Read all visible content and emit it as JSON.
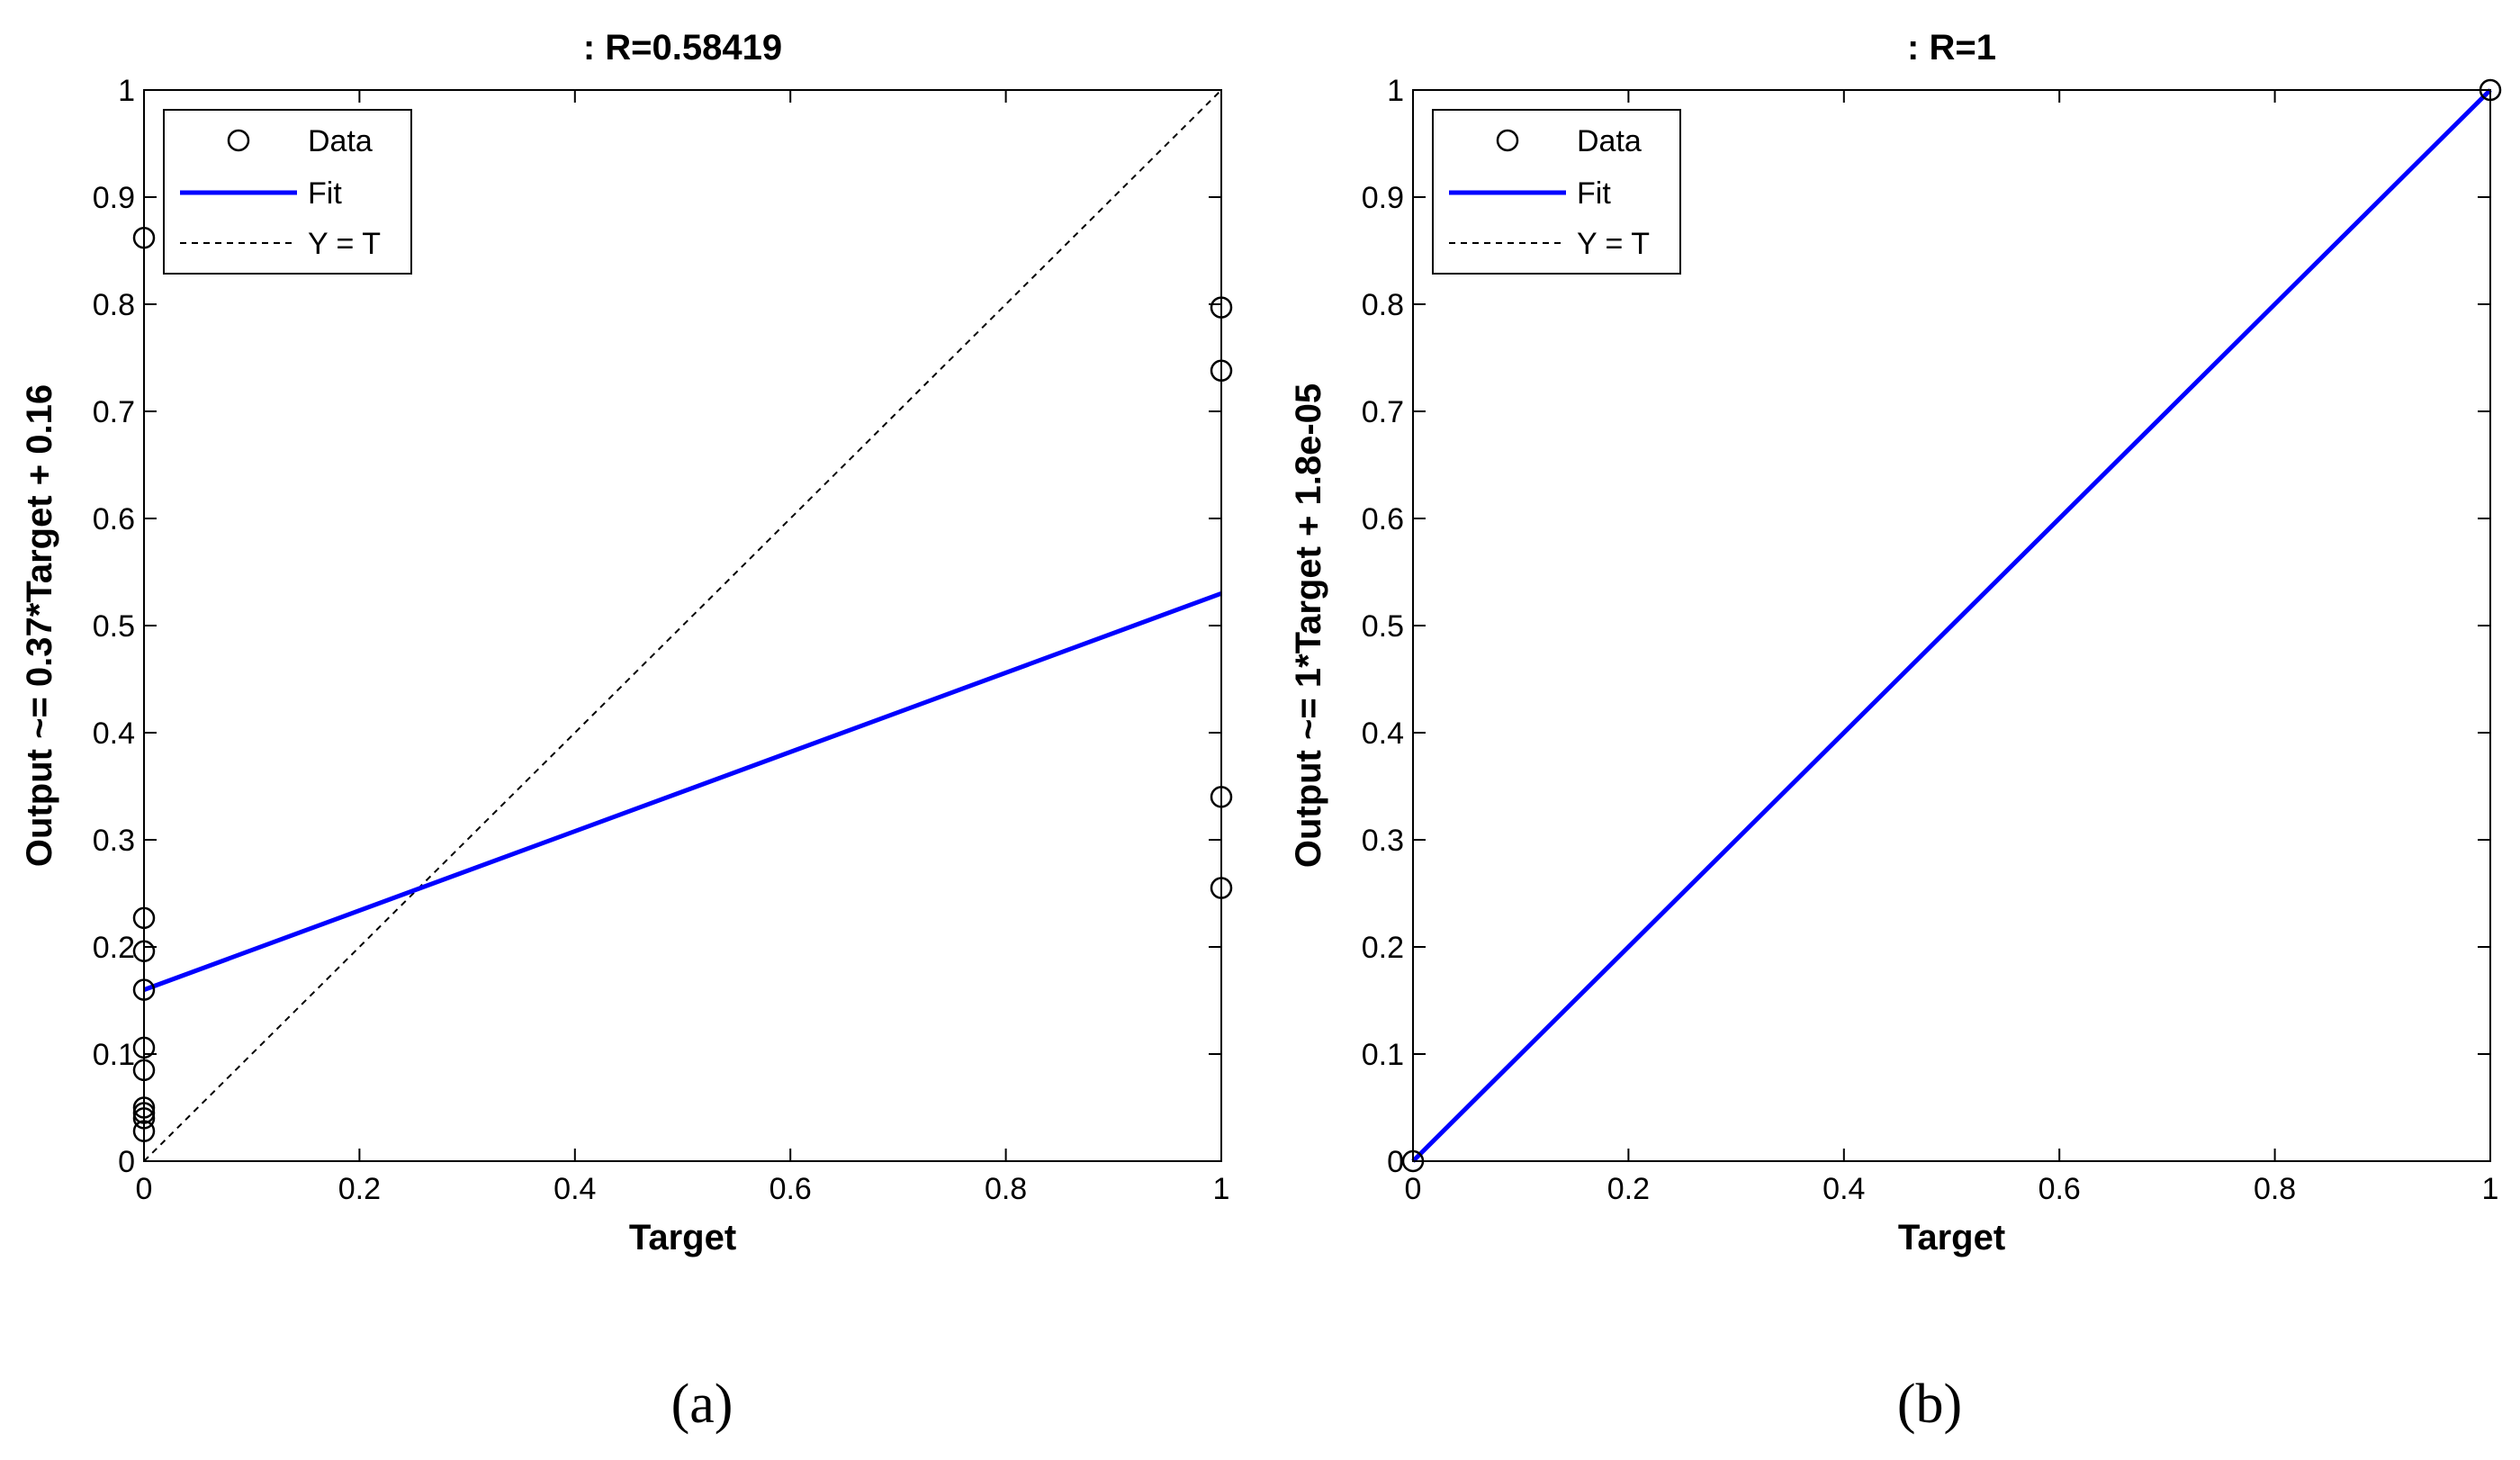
{
  "captions": [
    "(a)",
    "(b)"
  ],
  "chart_data": [
    {
      "type": "scatter",
      "title": ": R=0.58419",
      "xlabel": "Target",
      "ylabel": "Output ~= 0.37*Target + 0.16",
      "xlim": [
        0,
        1
      ],
      "ylim": [
        0,
        1
      ],
      "xticks": [
        "0",
        "0.2",
        "0.4",
        "0.6",
        "0.8",
        "1"
      ],
      "yticks": [
        "0",
        "0.1",
        "0.2",
        "0.3",
        "0.4",
        "0.5",
        "0.6",
        "0.7",
        "0.8",
        "0.9",
        "1"
      ],
      "grid": false,
      "legend_position": "top-left",
      "legend": [
        "Data",
        "Fit",
        "Y = T"
      ],
      "fit": {
        "slope": 0.37,
        "intercept": 0.16,
        "color": "#0000ff"
      },
      "identity_line": true,
      "data": [
        {
          "x": 0,
          "y": 0.862
        },
        {
          "x": 0,
          "y": 0.227
        },
        {
          "x": 0,
          "y": 0.196
        },
        {
          "x": 0,
          "y": 0.16
        },
        {
          "x": 0,
          "y": 0.106
        },
        {
          "x": 0,
          "y": 0.085
        },
        {
          "x": 0,
          "y": 0.05
        },
        {
          "x": 0,
          "y": 0.045
        },
        {
          "x": 0,
          "y": 0.04
        },
        {
          "x": 0,
          "y": 0.028
        },
        {
          "x": 1,
          "y": 0.797
        },
        {
          "x": 1,
          "y": 0.738
        },
        {
          "x": 1,
          "y": 0.34
        },
        {
          "x": 1,
          "y": 0.255
        }
      ]
    },
    {
      "type": "scatter",
      "title": ": R=1",
      "xlabel": "Target",
      "ylabel": "Output ~= 1*Target + 1.8e-05",
      "xlim": [
        0,
        1
      ],
      "ylim": [
        0,
        1
      ],
      "xticks": [
        "0",
        "0.2",
        "0.4",
        "0.6",
        "0.8",
        "1"
      ],
      "yticks": [
        "0",
        "0.1",
        "0.2",
        "0.3",
        "0.4",
        "0.5",
        "0.6",
        "0.7",
        "0.8",
        "0.9",
        "1"
      ],
      "grid": false,
      "legend_position": "top-left",
      "legend": [
        "Data",
        "Fit",
        "Y = T"
      ],
      "fit": {
        "slope": 1,
        "intercept": 1.8e-05,
        "color": "#0000ff"
      },
      "identity_line": true,
      "data": [
        {
          "x": 0,
          "y": 0
        },
        {
          "x": 1,
          "y": 1
        }
      ]
    }
  ]
}
